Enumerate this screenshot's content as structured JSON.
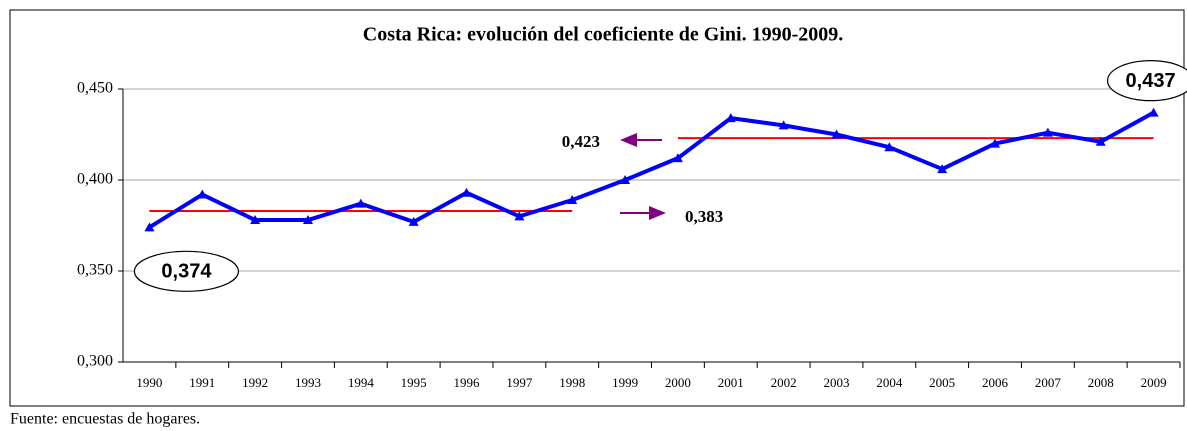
{
  "chart_data": {
    "type": "line",
    "title": "Costa Rica: evolución del coeficiente de Gini. 1990-2009.",
    "categories": [
      "1990",
      "1991",
      "1992",
      "1993",
      "1994",
      "1995",
      "1996",
      "1997",
      "1998",
      "1999",
      "2000",
      "2001",
      "2002",
      "2003",
      "2004",
      "2005",
      "2006",
      "2007",
      "2008",
      "2009"
    ],
    "series": [
      {
        "name": "Gini",
        "color": "#0000ff",
        "values": [
          0.374,
          0.392,
          0.378,
          0.378,
          0.387,
          0.377,
          0.393,
          0.38,
          0.389,
          0.4,
          0.412,
          0.434,
          0.43,
          0.425,
          0.418,
          0.406,
          0.42,
          0.426,
          0.421,
          0.437
        ],
        "value_labels": [
          "0,374",
          null,
          null,
          null,
          null,
          null,
          null,
          null,
          null,
          null,
          null,
          null,
          null,
          null,
          null,
          null,
          null,
          null,
          null,
          "0,437"
        ]
      }
    ],
    "reference_lines": [
      {
        "value": 0.383,
        "label": "0,383",
        "from": "1990",
        "to": "1998",
        "color": "#ff0000"
      },
      {
        "value": 0.423,
        "label": "0,423",
        "from": "2000",
        "to": "2009",
        "color": "#ff0000"
      }
    ],
    "ylim": [
      0.3,
      0.46
    ],
    "yticks": [
      {
        "value": 0.3,
        "label": "0,300"
      },
      {
        "value": 0.35,
        "label": "0,350"
      },
      {
        "value": 0.4,
        "label": "0,400"
      },
      {
        "value": 0.45,
        "label": "0,450"
      }
    ],
    "grid": true,
    "source": "Fuente: encuestas de hogares."
  }
}
